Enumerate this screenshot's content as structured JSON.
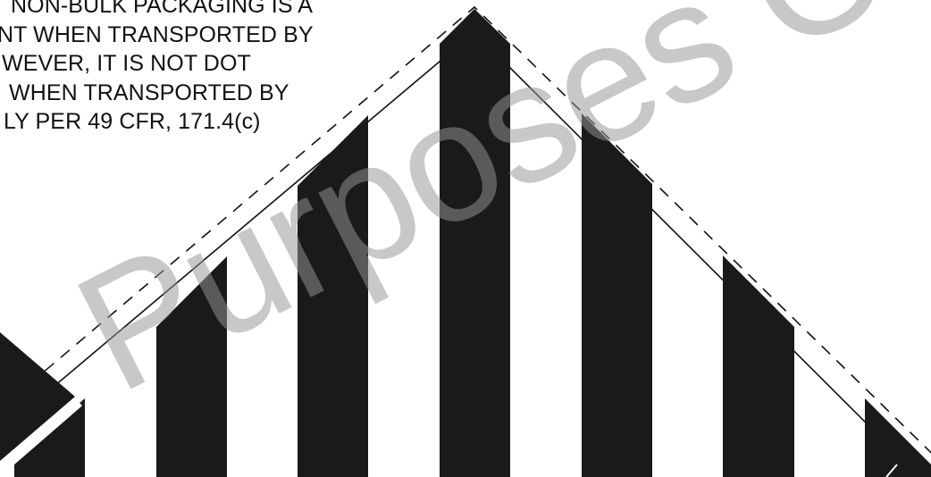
{
  "notice": {
    "lines": [
      "NON-BULK PACKAGING IS A",
      "NT WHEN TRANSPORTED BY",
      "WEVER, IT IS NOT DOT",
      "WHEN TRANSPORTED BY",
      "LY PER 49 CFR, 171.4(c)"
    ]
  },
  "watermark": {
    "text": "Purposes Only",
    "color": "#9a9a9a"
  },
  "placard": {
    "stripe_color": "#1a1a1a",
    "border_color": "#111111",
    "stripe_count": 6
  }
}
